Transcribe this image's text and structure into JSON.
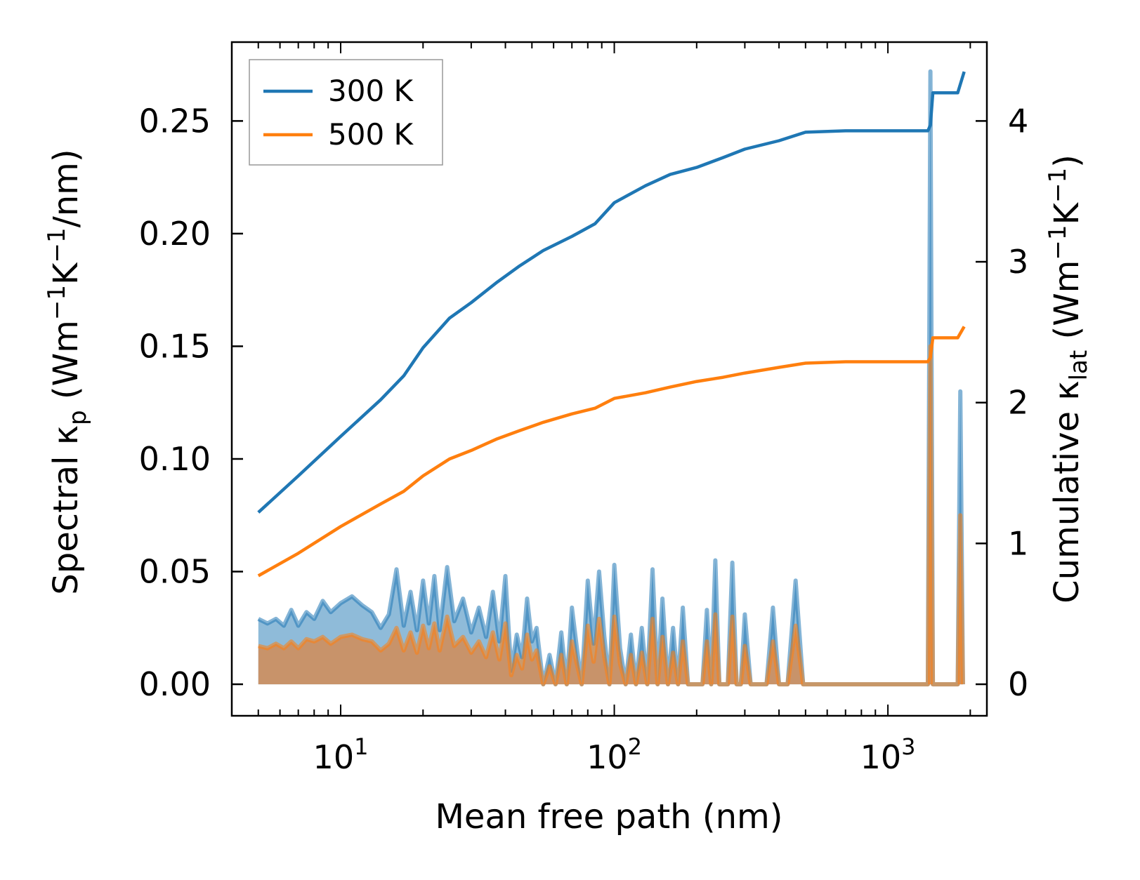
{
  "colors": {
    "s300": "#1f77b4",
    "s500": "#ff7f0e",
    "spectral500_fill": "#c8936a",
    "axis": "#000000",
    "legend_border": "#999999"
  },
  "axes": {
    "xlabel": "Mean free path (nm)",
    "ylabel_left": {
      "prefix": "Spectral κ",
      "sub": "p",
      "unit_open": " (Wm",
      "sup1": "−1",
      "unit_mid": "K",
      "sup2": "−1",
      "unit_close": "/nm)"
    },
    "ylabel_right": {
      "prefix": "Cumulative κ",
      "sub": "lat",
      "unit_open": " (Wm",
      "sup1": "−1",
      "unit_mid": "K",
      "sup2": "−1",
      "unit_close": ")"
    },
    "xscale": "log",
    "xlim": [
      4.0,
      2300
    ],
    "ylim_left": [
      -0.014,
      0.285
    ],
    "ylim_right": [
      -0.224,
      4.56
    ],
    "yticks_left": [
      "0.00",
      "0.05",
      "0.10",
      "0.15",
      "0.20",
      "0.25"
    ],
    "yticks_right": [
      "0",
      "1",
      "2",
      "3",
      "4"
    ],
    "xticks": [
      {
        "base": "10",
        "exp": "1"
      },
      {
        "base": "10",
        "exp": "2"
      },
      {
        "base": "10",
        "exp": "3"
      }
    ]
  },
  "legend": {
    "position": "top-left",
    "items": [
      {
        "label": "300 K",
        "series": "s300"
      },
      {
        "label": "500 K",
        "series": "s500"
      }
    ]
  },
  "chart_data": [
    {
      "type": "line",
      "name": "Cumulative κ_lat 300 K",
      "axis": "right",
      "x": [
        5,
        7,
        10,
        14,
        17,
        20,
        25,
        30,
        37,
        45,
        55,
        70,
        85,
        100,
        130,
        160,
        200,
        250,
        300,
        400,
        500,
        700,
        1000,
        1400,
        1430,
        1460,
        1490,
        1800,
        1900
      ],
      "y": [
        1.22,
        1.48,
        1.76,
        2.02,
        2.19,
        2.39,
        2.6,
        2.71,
        2.85,
        2.97,
        3.08,
        3.18,
        3.27,
        3.42,
        3.54,
        3.62,
        3.67,
        3.74,
        3.8,
        3.86,
        3.92,
        3.93,
        3.93,
        3.93,
        3.97,
        4.2,
        4.2,
        4.2,
        4.35
      ]
    },
    {
      "type": "line",
      "name": "Cumulative κ_lat 500 K",
      "axis": "right",
      "x": [
        5,
        7,
        10,
        14,
        17,
        20,
        25,
        30,
        37,
        45,
        55,
        70,
        85,
        100,
        130,
        160,
        200,
        250,
        300,
        400,
        500,
        700,
        1000,
        1400,
        1430,
        1460,
        1490,
        1800,
        1900
      ],
      "y": [
        0.77,
        0.93,
        1.12,
        1.28,
        1.37,
        1.48,
        1.6,
        1.66,
        1.74,
        1.8,
        1.86,
        1.92,
        1.96,
        2.03,
        2.07,
        2.11,
        2.15,
        2.18,
        2.21,
        2.25,
        2.28,
        2.29,
        2.29,
        2.29,
        2.32,
        2.46,
        2.46,
        2.46,
        2.54
      ]
    },
    {
      "type": "area",
      "name": "Spectral κ_p 300 K",
      "axis": "left",
      "x": [
        5,
        5.4,
        5.8,
        6.2,
        6.6,
        7,
        7.5,
        8,
        8.6,
        9.2,
        10,
        11,
        12,
        13,
        14,
        15,
        16,
        17,
        18,
        19,
        20,
        21,
        22,
        23,
        24.5,
        26,
        28,
        30,
        32,
        34,
        36,
        38,
        40,
        42,
        44,
        46,
        48,
        50,
        52,
        55,
        58,
        61,
        64,
        67,
        70,
        73,
        76,
        80,
        84,
        88,
        92,
        96,
        100,
        105,
        110,
        115,
        120,
        126,
        132,
        138,
        144,
        150,
        157,
        164,
        171,
        178,
        186,
        194,
        202,
        210,
        218,
        226,
        234,
        242,
        250,
        260,
        270,
        280,
        290,
        300,
        315,
        330,
        345,
        360,
        380,
        400,
        430,
        460,
        490,
        520,
        550,
        1400,
        1430,
        1460,
        1490,
        1800,
        1840,
        1880
      ],
      "y": [
        0.029,
        0.027,
        0.029,
        0.026,
        0.033,
        0.026,
        0.032,
        0.029,
        0.037,
        0.032,
        0.036,
        0.039,
        0.035,
        0.032,
        0.025,
        0.031,
        0.051,
        0.026,
        0.041,
        0.024,
        0.046,
        0.027,
        0.048,
        0.024,
        0.052,
        0.028,
        0.038,
        0.023,
        0.034,
        0.021,
        0.041,
        0.019,
        0.048,
        0.006,
        0.022,
        0.012,
        0.038,
        0.019,
        0.025,
        0.0,
        0.013,
        0.0,
        0.023,
        0.0,
        0.034,
        0.016,
        0.0,
        0.046,
        0.018,
        0.05,
        0.021,
        0.0,
        0.053,
        0.016,
        0.0,
        0.022,
        0.0,
        0.025,
        0.0,
        0.051,
        0.0,
        0.038,
        0.0,
        0.025,
        0.0,
        0.034,
        0.0,
        0.0,
        0.0,
        0.0,
        0.033,
        0.0,
        0.055,
        0.0,
        0.0,
        0.0,
        0.054,
        0.0,
        0.0,
        0.031,
        0.0,
        0.0,
        0.0,
        0.0,
        0.034,
        0.0,
        0.0,
        0.046,
        0.0,
        0.0,
        0.0,
        0.0,
        0.272,
        0.0,
        0.0,
        0.0,
        0.13,
        0.0
      ]
    },
    {
      "type": "area",
      "name": "Spectral κ_p 500 K",
      "axis": "left",
      "x": [
        5,
        5.4,
        5.8,
        6.2,
        6.6,
        7,
        7.5,
        8,
        8.6,
        9.2,
        10,
        11,
        12,
        13,
        14,
        15,
        16,
        17,
        18,
        19,
        20,
        21,
        22,
        23,
        24.5,
        26,
        28,
        30,
        32,
        34,
        36,
        38,
        40,
        42,
        44,
        46,
        48,
        50,
        52,
        55,
        58,
        61,
        64,
        67,
        70,
        73,
        76,
        80,
        84,
        88,
        92,
        96,
        100,
        105,
        110,
        115,
        120,
        126,
        132,
        138,
        144,
        150,
        157,
        164,
        171,
        178,
        186,
        194,
        202,
        210,
        218,
        226,
        234,
        242,
        250,
        260,
        270,
        280,
        290,
        300,
        315,
        330,
        345,
        360,
        380,
        400,
        430,
        460,
        490,
        520,
        550,
        1400,
        1430,
        1460,
        1490,
        1800,
        1840,
        1880
      ],
      "y": [
        0.017,
        0.016,
        0.018,
        0.016,
        0.019,
        0.016,
        0.02,
        0.019,
        0.021,
        0.018,
        0.021,
        0.022,
        0.02,
        0.019,
        0.015,
        0.018,
        0.025,
        0.015,
        0.023,
        0.014,
        0.026,
        0.016,
        0.027,
        0.015,
        0.03,
        0.017,
        0.021,
        0.014,
        0.019,
        0.012,
        0.023,
        0.011,
        0.027,
        0.004,
        0.013,
        0.007,
        0.022,
        0.011,
        0.015,
        0.0,
        0.008,
        0.0,
        0.013,
        0.0,
        0.019,
        0.009,
        0.0,
        0.026,
        0.01,
        0.029,
        0.012,
        0.0,
        0.03,
        0.009,
        0.0,
        0.013,
        0.0,
        0.014,
        0.0,
        0.029,
        0.0,
        0.021,
        0.0,
        0.014,
        0.0,
        0.019,
        0.0,
        0.0,
        0.0,
        0.0,
        0.019,
        0.0,
        0.031,
        0.0,
        0.0,
        0.0,
        0.03,
        0.0,
        0.0,
        0.017,
        0.0,
        0.0,
        0.0,
        0.0,
        0.019,
        0.0,
        0.0,
        0.026,
        0.0,
        0.0,
        0.0,
        0.0,
        0.15,
        0.0,
        0.0,
        0.0,
        0.075,
        0.0
      ]
    }
  ]
}
